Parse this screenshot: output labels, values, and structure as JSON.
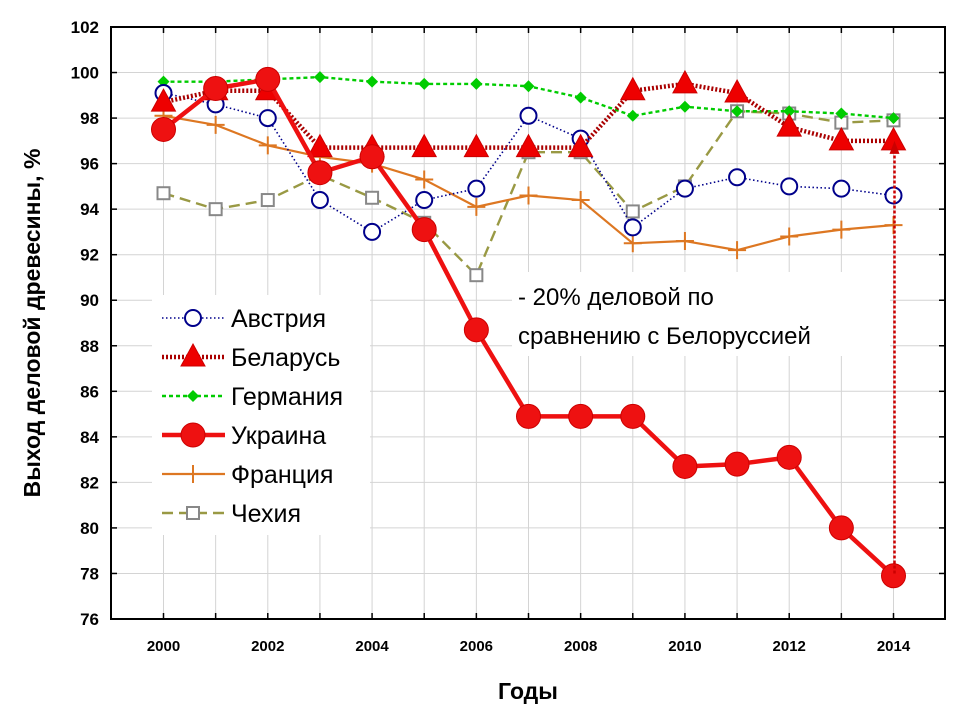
{
  "chart_data": {
    "type": "line",
    "xlabel": "Годы",
    "ylabel": "Выход деловой древесины, %",
    "xlim": [
      1999,
      2015
    ],
    "ylim": [
      76,
      102
    ],
    "x_ticks": [
      2000,
      2002,
      2004,
      2006,
      2008,
      2010,
      2012,
      2014
    ],
    "y_ticks": [
      76,
      78,
      80,
      82,
      84,
      86,
      88,
      90,
      92,
      94,
      96,
      98,
      100,
      102
    ],
    "grid": true,
    "legend_position": "left",
    "x": [
      2000,
      2001,
      2002,
      2003,
      2004,
      2005,
      2006,
      2007,
      2008,
      2009,
      2010,
      2011,
      2012,
      2013,
      2014
    ],
    "series": [
      {
        "name": "Австрия",
        "color": "#00008b",
        "marker": "circle-open",
        "line": "dotted",
        "values": [
          99.1,
          98.6,
          98.0,
          94.4,
          93.0,
          94.4,
          94.9,
          98.1,
          97.1,
          93.2,
          94.9,
          95.4,
          95.0,
          94.9,
          94.6
        ]
      },
      {
        "name": "Беларусь",
        "color": "#aa0000",
        "marker": "triangle-filled",
        "line": "dotted-thick",
        "values": [
          98.7,
          99.2,
          99.2,
          96.7,
          96.7,
          96.7,
          96.7,
          96.7,
          96.7,
          99.2,
          99.5,
          99.1,
          97.6,
          97.0,
          97.0
        ]
      },
      {
        "name": "Германия",
        "color": "#00cc00",
        "marker": "diamond-filled",
        "line": "dashed",
        "values": [
          99.6,
          99.6,
          99.7,
          99.8,
          99.6,
          99.5,
          99.5,
          99.4,
          98.9,
          98.1,
          98.5,
          98.3,
          98.3,
          98.2,
          98.0
        ]
      },
      {
        "name": "Украина",
        "color": "#ee1111",
        "marker": "circle-filled",
        "line": "solid-thick",
        "values": [
          97.5,
          99.3,
          99.7,
          95.6,
          96.3,
          93.1,
          88.7,
          84.9,
          84.9,
          84.9,
          82.7,
          82.8,
          83.1,
          80.0,
          77.9
        ]
      },
      {
        "name": "Франция",
        "color": "#dd7722",
        "marker": "plus",
        "line": "solid",
        "values": [
          98.1,
          97.7,
          96.8,
          96.3,
          96.0,
          95.3,
          94.1,
          94.6,
          94.4,
          92.5,
          92.6,
          92.2,
          92.8,
          93.1,
          93.3
        ]
      },
      {
        "name": "Чехия",
        "color": "#999944",
        "marker": "square-open",
        "line": "dashed-long",
        "values": [
          94.7,
          94.0,
          94.4,
          95.5,
          94.5,
          93.4,
          91.1,
          96.5,
          96.5,
          93.9,
          95.0,
          98.3,
          98.2,
          97.8,
          97.9
        ]
      }
    ],
    "annotation": {
      "lines": [
        "- 20% деловой по",
        "сравнению с Белоруссией"
      ],
      "arrow_x": 2014,
      "arrow_from": 78,
      "arrow_to": 97
    }
  }
}
